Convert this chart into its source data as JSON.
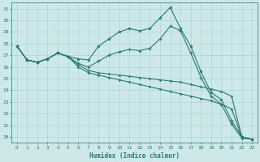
{
  "xlabel": "Humidex (Indice chaleur)",
  "bg_color": "#cce8e8",
  "line_color": "#2a7a6e",
  "grid_color": "#aed4d4",
  "xlim": [
    -0.5,
    23.5
  ],
  "ylim": [
    19.5,
    31.5
  ],
  "xticks": [
    0,
    1,
    2,
    3,
    4,
    5,
    6,
    7,
    8,
    9,
    10,
    11,
    12,
    13,
    14,
    15,
    16,
    17,
    18,
    19,
    20,
    21,
    22,
    23
  ],
  "yticks": [
    20,
    21,
    22,
    23,
    24,
    25,
    26,
    27,
    28,
    29,
    30,
    31
  ],
  "line1": [
    27.8,
    26.6,
    26.4,
    26.7,
    27.2,
    26.9,
    26.7,
    26.6,
    27.8,
    28.4,
    29.0,
    29.3,
    29.1,
    29.3,
    30.2,
    31.1,
    29.3,
    27.8,
    25.6,
    23.8,
    23.2,
    21.4,
    20.0,
    19.8
  ],
  "line2": [
    27.8,
    26.6,
    26.4,
    26.7,
    27.2,
    26.9,
    26.3,
    26.0,
    26.5,
    27.0,
    27.3,
    27.5,
    27.4,
    27.6,
    28.4,
    29.5,
    29.1,
    27.2,
    25.1,
    23.5,
    22.8,
    21.1,
    19.9,
    19.8
  ],
  "line3": [
    27.8,
    26.6,
    26.4,
    26.7,
    27.2,
    26.9,
    26.2,
    25.7,
    25.5,
    25.4,
    25.3,
    25.2,
    25.1,
    25.0,
    24.9,
    24.8,
    24.7,
    24.5,
    24.3,
    24.1,
    23.9,
    23.5,
    20.0,
    19.8
  ],
  "line4": [
    27.8,
    26.6,
    26.4,
    26.7,
    27.2,
    26.9,
    26.0,
    25.5,
    25.3,
    25.1,
    24.9,
    24.7,
    24.5,
    24.3,
    24.1,
    23.9,
    23.7,
    23.5,
    23.3,
    23.1,
    22.8,
    22.4,
    20.0,
    19.8
  ]
}
